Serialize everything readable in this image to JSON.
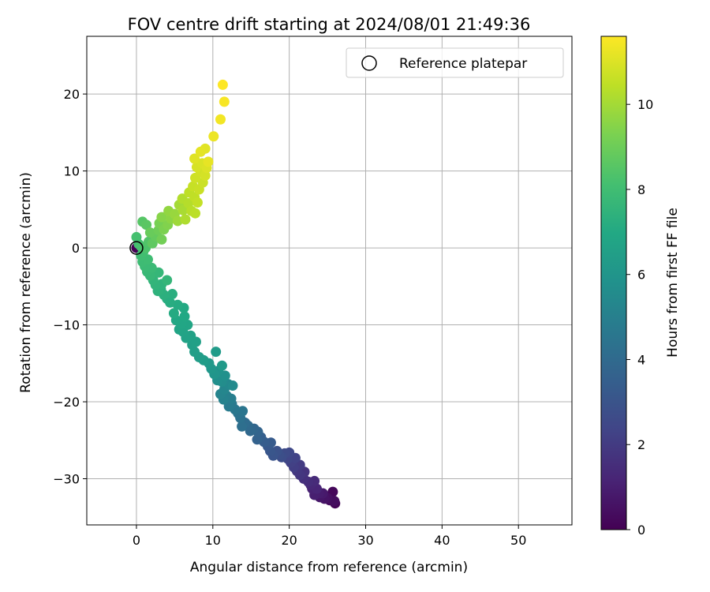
{
  "chart_data": {
    "type": "scatter",
    "title": "FOV centre drift starting at 2024/08/01 21:49:36",
    "xlabel": "Angular distance from reference (arcmin)",
    "ylabel": "Rotation from reference (arcmin)",
    "xlim": [
      -6.5,
      57
    ],
    "ylim": [
      -36,
      27.5
    ],
    "xticks": [
      0,
      10,
      20,
      30,
      40,
      50
    ],
    "yticks": [
      -30,
      -20,
      -10,
      0,
      10,
      20
    ],
    "grid": true,
    "legend": {
      "placement": "top-right",
      "entries": [
        "Reference platepar"
      ]
    },
    "colorbar": {
      "label": "Hours from first FF file",
      "range": [
        0,
        11.6
      ],
      "ticks": [
        0,
        2,
        4,
        6,
        8,
        10
      ],
      "colormap": "viridis"
    },
    "reference_point": {
      "x": 0,
      "y": 0
    },
    "series": [
      {
        "points": [
          [
            0,
            0,
            0.0
          ],
          [
            26.0,
            -33.2,
            0.1
          ],
          [
            25.7,
            -31.7,
            0.2
          ],
          [
            25.3,
            -32.8,
            0.3
          ],
          [
            25.9,
            -32.9,
            0.4
          ],
          [
            25.0,
            -32.5,
            0.5
          ],
          [
            24.6,
            -32.6,
            0.6
          ],
          [
            24.0,
            -32.4,
            0.7
          ],
          [
            24.4,
            -31.9,
            0.8
          ],
          [
            23.9,
            -31.9,
            0.9
          ],
          [
            23.3,
            -32.1,
            1.0
          ],
          [
            23.0,
            -31.3,
            1.1
          ],
          [
            23.6,
            -31.3,
            1.2
          ],
          [
            22.8,
            -30.8,
            1.3
          ],
          [
            23.3,
            -30.3,
            1.4
          ],
          [
            22.5,
            -30.4,
            1.5
          ],
          [
            21.9,
            -30.0,
            1.6
          ],
          [
            22.0,
            -29.1,
            1.7
          ],
          [
            21.4,
            -29.5,
            1.8
          ],
          [
            21.0,
            -29.0,
            1.9
          ],
          [
            21.4,
            -28.2,
            2.0
          ],
          [
            20.6,
            -28.5,
            2.1
          ],
          [
            20.2,
            -27.9,
            2.2
          ],
          [
            20.8,
            -27.3,
            2.3
          ],
          [
            19.8,
            -27.4,
            2.4
          ],
          [
            20.0,
            -26.6,
            2.5
          ],
          [
            19.4,
            -26.7,
            2.6
          ],
          [
            19.0,
            -27.2,
            2.7
          ],
          [
            18.7,
            -26.9,
            2.8
          ],
          [
            18.4,
            -26.4,
            2.9
          ],
          [
            17.9,
            -27.0,
            3.0
          ],
          [
            17.5,
            -26.4,
            3.1
          ],
          [
            17.2,
            -25.8,
            3.2
          ],
          [
            17.6,
            -25.3,
            3.3
          ],
          [
            16.7,
            -25.2,
            3.4
          ],
          [
            16.3,
            -24.6,
            3.5
          ],
          [
            15.8,
            -24.9,
            3.6
          ],
          [
            15.9,
            -23.9,
            3.7
          ],
          [
            15.4,
            -23.5,
            3.8
          ],
          [
            14.9,
            -23.8,
            3.9
          ],
          [
            14.6,
            -23.1,
            4.0
          ],
          [
            14.2,
            -22.7,
            4.1
          ],
          [
            13.8,
            -23.2,
            4.2
          ],
          [
            13.6,
            -22.1,
            4.3
          ],
          [
            13.3,
            -21.5,
            4.4
          ],
          [
            13.9,
            -21.2,
            4.5
          ],
          [
            12.9,
            -21.0,
            4.6
          ],
          [
            12.5,
            -20.3,
            4.7
          ],
          [
            12.1,
            -20.6,
            4.8
          ],
          [
            12.4,
            -19.6,
            4.9
          ],
          [
            11.8,
            -19.2,
            5.0
          ],
          [
            11.4,
            -19.7,
            5.1
          ],
          [
            11.0,
            -19.0,
            5.2
          ],
          [
            11.5,
            -18.4,
            5.3
          ],
          [
            12.0,
            -17.7,
            5.4
          ],
          [
            12.6,
            -17.9,
            5.5
          ],
          [
            11.2,
            -17.4,
            5.6
          ],
          [
            10.6,
            -17.2,
            5.7
          ],
          [
            11.6,
            -16.6,
            5.8
          ],
          [
            10.7,
            -16.0,
            5.9
          ],
          [
            10.2,
            -16.4,
            6.0
          ],
          [
            9.8,
            -15.7,
            6.1
          ],
          [
            9.5,
            -15.0,
            6.2
          ],
          [
            11.2,
            -15.3,
            6.25
          ],
          [
            10.4,
            -13.5,
            6.3
          ],
          [
            8.8,
            -14.6,
            6.35
          ],
          [
            8.2,
            -14.2,
            6.4
          ],
          [
            7.6,
            -13.5,
            6.45
          ],
          [
            7.3,
            -12.6,
            6.5
          ],
          [
            7.8,
            -12.2,
            6.55
          ],
          [
            7.1,
            -11.4,
            6.6
          ],
          [
            6.5,
            -11.7,
            6.65
          ],
          [
            6.1,
            -10.9,
            6.7
          ],
          [
            5.6,
            -10.6,
            6.75
          ],
          [
            6.7,
            -10.0,
            6.8
          ],
          [
            5.9,
            -9.8,
            6.85
          ],
          [
            5.2,
            -9.4,
            6.9
          ],
          [
            6.3,
            -8.9,
            6.95
          ],
          [
            6.2,
            -7.8,
            7.0
          ],
          [
            4.9,
            -8.5,
            7.05
          ],
          [
            5.4,
            -7.4,
            7.1
          ],
          [
            4.4,
            -7.1,
            7.15
          ],
          [
            4.0,
            -6.6,
            7.2
          ],
          [
            4.7,
            -6.0,
            7.25
          ],
          [
            3.6,
            -6.1,
            7.3
          ],
          [
            3.2,
            -5.4,
            7.35
          ],
          [
            2.8,
            -5.6,
            7.4
          ],
          [
            3.3,
            -4.7,
            7.45
          ],
          [
            2.5,
            -4.8,
            7.5
          ],
          [
            2.2,
            -4.2,
            7.55
          ],
          [
            4.0,
            -4.2,
            7.6
          ],
          [
            2.9,
            -3.2,
            7.65
          ],
          [
            1.8,
            -3.6,
            7.7
          ],
          [
            1.4,
            -3.1,
            7.75
          ],
          [
            2.0,
            -2.6,
            7.8
          ],
          [
            1.1,
            -2.4,
            7.85
          ],
          [
            0.8,
            -1.8,
            7.9
          ],
          [
            1.5,
            -1.5,
            7.95
          ],
          [
            0.6,
            -1.0,
            8.0
          ],
          [
            0.9,
            -0.5,
            8.05
          ],
          [
            0.3,
            0.5,
            8.1
          ],
          [
            0.0,
            1.4,
            8.15
          ],
          [
            0.6,
            0.2,
            8.2
          ],
          [
            1.2,
            0.0,
            8.3
          ],
          [
            1.6,
            0.8,
            8.4
          ],
          [
            0.8,
            3.4,
            8.5
          ],
          [
            1.3,
            3.0,
            8.6
          ],
          [
            2.1,
            0.6,
            8.7
          ],
          [
            2.5,
            1.5,
            8.8
          ],
          [
            1.8,
            2.0,
            8.9
          ],
          [
            2.9,
            2.3,
            9.0
          ],
          [
            3.3,
            1.1,
            9.1
          ],
          [
            3.0,
            3.2,
            9.2
          ],
          [
            3.6,
            2.4,
            9.3
          ],
          [
            4.1,
            3.0,
            9.4
          ],
          [
            3.3,
            4.0,
            9.5
          ],
          [
            4.5,
            3.8,
            9.6
          ],
          [
            4.2,
            4.8,
            9.7
          ],
          [
            5.0,
            4.4,
            9.8
          ],
          [
            5.4,
            3.5,
            9.9
          ],
          [
            5.6,
            5.6,
            10.0
          ],
          [
            6.1,
            4.9,
            10.1
          ],
          [
            6.4,
            3.7,
            10.2
          ],
          [
            6.0,
            6.4,
            10.25
          ],
          [
            6.8,
            5.8,
            10.3
          ],
          [
            7.2,
            4.8,
            10.35
          ],
          [
            7.7,
            4.5,
            10.4
          ],
          [
            6.9,
            7.2,
            10.45
          ],
          [
            7.6,
            6.6,
            10.5
          ],
          [
            8.0,
            5.9,
            10.55
          ],
          [
            7.4,
            8.0,
            10.6
          ],
          [
            8.2,
            7.6,
            10.65
          ],
          [
            8.7,
            8.5,
            10.7
          ],
          [
            7.7,
            9.1,
            10.75
          ],
          [
            8.4,
            9.9,
            10.8
          ],
          [
            9.0,
            9.4,
            10.85
          ],
          [
            7.9,
            10.5,
            10.9
          ],
          [
            8.6,
            11.0,
            10.95
          ],
          [
            9.2,
            10.4,
            11.0
          ],
          [
            7.6,
            11.6,
            11.05
          ],
          [
            9.0,
            12.9,
            11.1
          ],
          [
            8.4,
            12.5,
            11.15
          ],
          [
            9.4,
            11.2,
            11.2
          ],
          [
            10.1,
            14.5,
            11.3
          ],
          [
            11.0,
            16.7,
            11.4
          ],
          [
            11.5,
            19.0,
            11.5
          ],
          [
            11.3,
            21.2,
            11.6
          ]
        ]
      }
    ]
  }
}
